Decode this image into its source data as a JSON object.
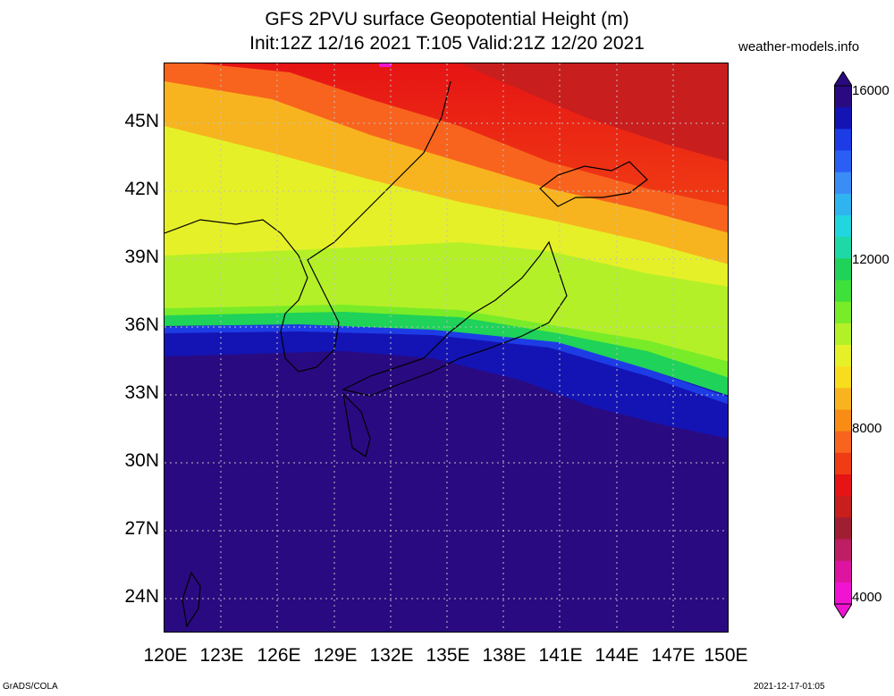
{
  "title_line1": "GFS 2PVU surface Geopotential Height (m)",
  "title_line2": "Init:12Z 12/16 2021 T:105 Valid:21Z 12/20 2021",
  "site": "weather-models.info",
  "lat_labels": [
    "45N",
    "42N",
    "39N",
    "36N",
    "33N",
    "30N",
    "27N",
    "24N"
  ],
  "lon_labels": [
    "120E",
    "123E",
    "126E",
    "129E",
    "132E",
    "135E",
    "138E",
    "141E",
    "144E",
    "147E",
    "150E"
  ],
  "colorbar_labels": [
    "16000",
    "12000",
    "8000",
    "4000"
  ],
  "colorbar_colors": [
    "#2a0a80",
    "#1414b4",
    "#1d3ce6",
    "#2a5ff5",
    "#3a8cf7",
    "#30b4f0",
    "#22d6e0",
    "#1ed8a8",
    "#1ed25a",
    "#3ee03a",
    "#78ec28",
    "#b4f028",
    "#e6f028",
    "#f8dc1e",
    "#f8b41e",
    "#f88c14",
    "#f8641e",
    "#f03c14",
    "#e61414",
    "#c81e1e",
    "#a01e32",
    "#be1e64",
    "#dc14a0",
    "#f014d2"
  ],
  "footer_left": "GrADS/COLA",
  "footer_right": "2021-12-17-01:05"
}
